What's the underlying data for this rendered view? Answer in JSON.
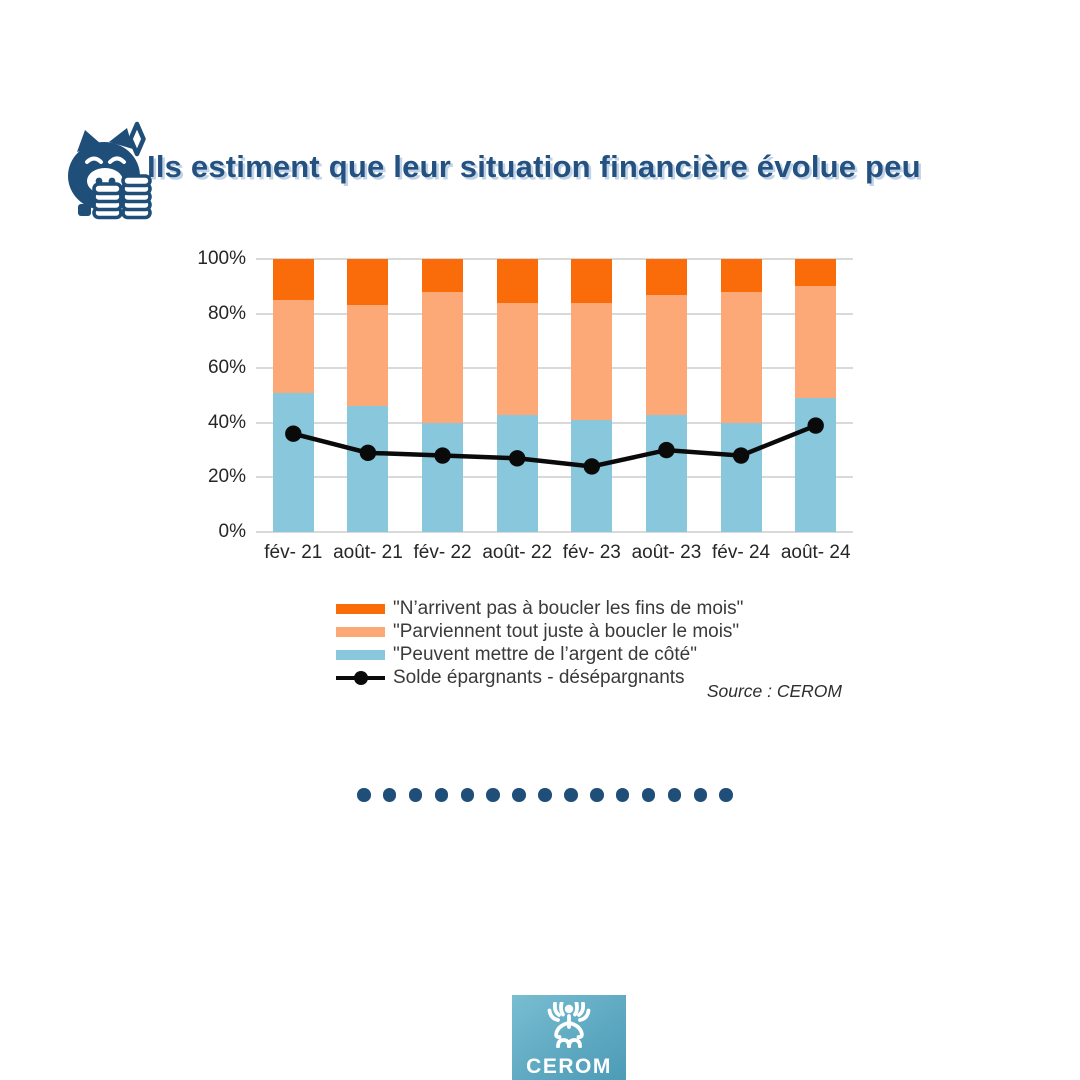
{
  "header": {
    "title": "Ils estiment que leur situation financière évolue peu",
    "icon": "piggy-bank-coins-icon"
  },
  "chart_data": {
    "type": "bar",
    "stacked": true,
    "units": "percent",
    "title": "Ils estiment que leur situation financière évolue peu",
    "categories": [
      "fév- 21",
      "août- 21",
      "fév- 22",
      "août- 22",
      "fév- 23",
      "août- 23",
      "fév- 24",
      "août- 24"
    ],
    "series": [
      {
        "name": "\"Peuvent mettre de l’argent de côté\"",
        "color": "#88C7DC",
        "values": [
          51,
          46,
          40,
          43,
          41,
          43,
          40,
          49
        ]
      },
      {
        "name": "\"Parviennent tout juste à boucler le mois\"",
        "color": "#FCA977",
        "values": [
          34,
          37,
          48,
          41,
          43,
          44,
          48,
          41
        ]
      },
      {
        "name": "\"N’arrivent pas à boucler les fins de mois\"",
        "color": "#FA6B0A",
        "values": [
          15,
          17,
          12,
          16,
          16,
          13,
          12,
          10
        ]
      }
    ],
    "line_series": {
      "name": "Solde épargnants - désépargnants",
      "color": "#0A0A0A",
      "values": [
        36,
        29,
        28,
        27,
        24,
        30,
        28,
        39
      ]
    },
    "y_ticks": [
      "0%",
      "20%",
      "40%",
      "60%",
      "80%",
      "100%"
    ],
    "ylim": [
      0,
      100
    ],
    "grid": true,
    "legend_position": "bottom-left",
    "source": "Source : CEROM"
  },
  "legend": {
    "entries": [
      {
        "label": "\"N’arrivent pas à boucler les fins de mois\"",
        "swatch": "bar",
        "color": "#FA6B0A"
      },
      {
        "label": "\"Parviennent tout juste à boucler le mois\"",
        "swatch": "bar",
        "color": "#FCA977"
      },
      {
        "label": "\"Peuvent mettre de l’argent de côté\"",
        "swatch": "bar",
        "color": "#88C7DC"
      },
      {
        "label": "Solde épargnants - désépargnants",
        "swatch": "line",
        "color": "#0A0A0A"
      }
    ]
  },
  "decor": {
    "dots_count": 15,
    "dots_color": "#1F4E79"
  },
  "footer": {
    "logo_text": "CEROM"
  },
  "colors": {
    "title_navy": "#24517F",
    "accent_navy": "#1F4E79",
    "orange": "#FA6B0A",
    "peach": "#FCA977",
    "light_blue": "#88C7DC",
    "gridline": "#D9D9D9",
    "logo_blue": "#5FA9C2"
  }
}
